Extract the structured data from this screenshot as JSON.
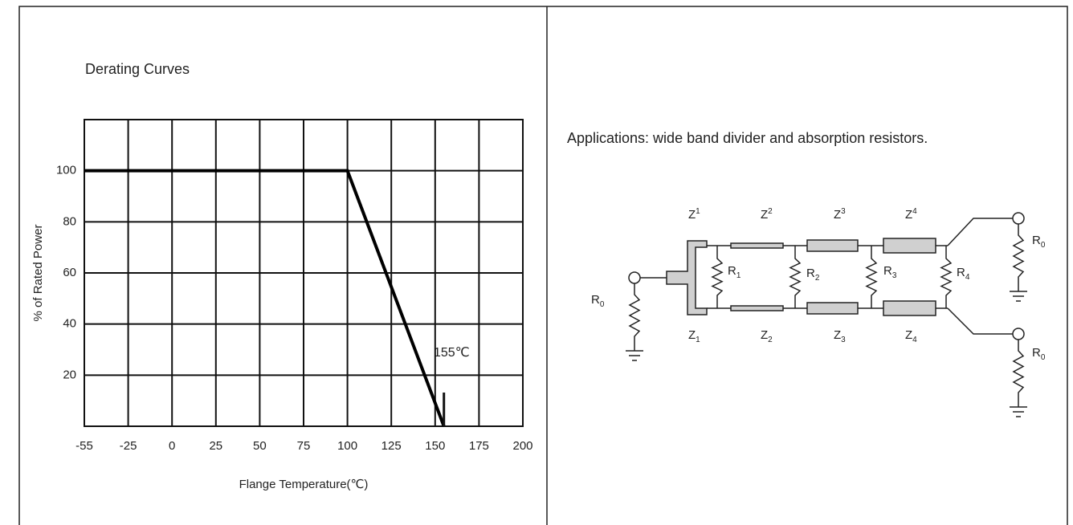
{
  "chart_data": {
    "type": "line",
    "title": "Derating Curves",
    "x_label": "Flange Temperature(℃)",
    "y_label": "% of Rated Power",
    "x": [
      -55,
      100,
      155
    ],
    "series": [
      {
        "color": "#000000",
        "values": [
          100,
          100,
          0
        ]
      }
    ],
    "xlim": [
      -55,
      200
    ],
    "xticks": [
      -55,
      -25,
      0,
      25,
      50,
      75,
      100,
      125,
      150,
      175,
      200
    ],
    "ylim": [
      0,
      120
    ],
    "yticks": [
      20,
      40,
      60,
      80,
      100
    ],
    "annotation": "155℃",
    "grid": true
  },
  "application": {
    "caption": "Applications: wide band divider and absorption resistors.",
    "top_impedances": [
      {
        "base": "Z",
        "index": "1"
      },
      {
        "base": "Z",
        "index": "2"
      },
      {
        "base": "Z",
        "index": "3"
      },
      {
        "base": "Z",
        "index": "4"
      }
    ],
    "bottom_impedances": [
      {
        "base": "Z",
        "index": "1"
      },
      {
        "base": "Z",
        "index": "2"
      },
      {
        "base": "Z",
        "index": "3"
      },
      {
        "base": "Z",
        "index": "4"
      }
    ],
    "shunt_resistors": [
      {
        "base": "R",
        "index": "1"
      },
      {
        "base": "R",
        "index": "2"
      },
      {
        "base": "R",
        "index": "3"
      },
      {
        "base": "R",
        "index": "4"
      }
    ],
    "port_resistors": [
      {
        "base": "R",
        "index": "0"
      },
      {
        "base": "R",
        "index": "0"
      },
      {
        "base": "R",
        "index": "0"
      }
    ]
  }
}
